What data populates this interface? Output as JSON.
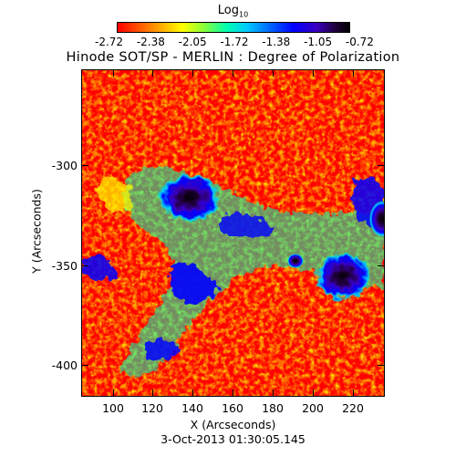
{
  "colorbar": {
    "title_main": "Log",
    "title_sub": "10",
    "ticks": [
      "-2.72",
      "-2.38",
      "-2.05",
      "-1.72",
      "-1.38",
      "-1.05",
      "-0.72"
    ]
  },
  "title": "Hinode SOT/SP - MERLIN : Degree of Polarization",
  "axes": {
    "x_label": "X (Arcseconds)",
    "y_label": "Y (Arcseconds)",
    "x_ticks": [
      "100",
      "120",
      "140",
      "160",
      "180",
      "200",
      "220"
    ],
    "y_ticks": [
      "-300",
      "-350",
      "-400"
    ]
  },
  "date": "3-Oct-2013 01:30:05.145",
  "colors": {
    "background": "#ff0000",
    "low": "#ff8000",
    "mid": "#00ffb0",
    "high": "#0000ff",
    "peak": "#20003a"
  }
}
